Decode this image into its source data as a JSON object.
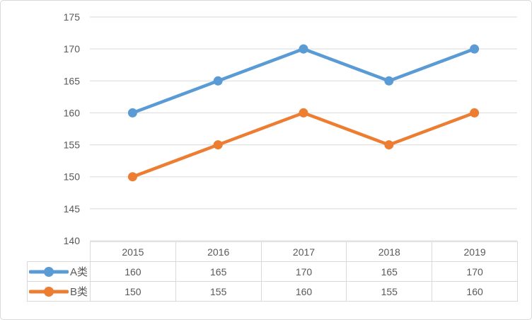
{
  "chart_data": {
    "type": "line",
    "title": "",
    "categories": [
      "2015",
      "2016",
      "2017",
      "2018",
      "2019"
    ],
    "series": [
      {
        "name": "A类",
        "color": "#5B9BD5",
        "values": [
          160,
          165,
          170,
          165,
          170
        ]
      },
      {
        "name": "B类",
        "color": "#ED7D31",
        "values": [
          150,
          155,
          160,
          155,
          160
        ]
      }
    ],
    "ylim": [
      140,
      175
    ],
    "y_ticks": [
      140,
      145,
      150,
      155,
      160,
      165,
      170,
      175
    ],
    "xlabel": "",
    "ylabel": "",
    "grid": "horizontal",
    "legend_position": "data-table-left",
    "data_table_shown": true
  },
  "colors": {
    "series_a": "#5B9BD5",
    "series_b": "#ED7D31",
    "gridline": "#D9D9D9",
    "axis_text": "#595959",
    "table_border": "#D9D9D9",
    "chart_border": "#D9D9D9",
    "background": "#FFFFFF"
  }
}
